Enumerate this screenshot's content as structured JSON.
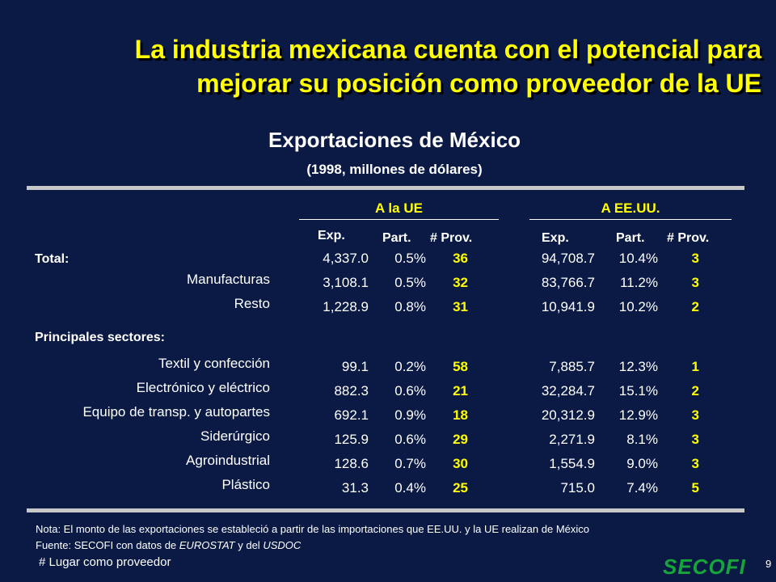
{
  "title": {
    "line1": "La industria mexicana cuenta con el potencial para",
    "line2": "mejorar su posición como proveedor de la UE"
  },
  "subtitle": "Exportaciones de México",
  "subsubtitle": "(1998, millones de dólares)",
  "groups": {
    "ue": "A la UE",
    "usa": "A EE.UU."
  },
  "headers": {
    "exp": "Exp.",
    "part": "Part.",
    "prov": "# Prov."
  },
  "rows": [
    {
      "label": "Total:",
      "ue_exp": "4,337.0",
      "ue_part": "0.5%",
      "ue_prov": "36",
      "us_exp": "94,708.7",
      "us_part": "10.4%",
      "us_prov": "3"
    },
    {
      "label": "Manufacturas",
      "ue_exp": "3,108.1",
      "ue_part": "0.5%",
      "ue_prov": "32",
      "us_exp": "83,766.7",
      "us_part": "11.2%",
      "us_prov": "3"
    },
    {
      "label": "Resto",
      "ue_exp": "1,228.9",
      "ue_part": "0.8%",
      "ue_prov": "31",
      "us_exp": "10,941.9",
      "us_part": "10.2%",
      "us_prov": "2"
    },
    {
      "label": "Principales sectores:"
    },
    {
      "label": "Textil y confección",
      "ue_exp": "99.1",
      "ue_part": "0.2%",
      "ue_prov": "58",
      "us_exp": "7,885.7",
      "us_part": "12.3%",
      "us_prov": "1"
    },
    {
      "label": "Electrónico  y eléctrico",
      "ue_exp": "882.3",
      "ue_part": "0.6%",
      "ue_prov": "21",
      "us_exp": "32,284.7",
      "us_part": "15.1%",
      "us_prov": "2"
    },
    {
      "label": "Equipo de transp. y autopartes",
      "ue_exp": "692.1",
      "ue_part": "0.9%",
      "ue_prov": "18",
      "us_exp": "20,312.9",
      "us_part": "12.9%",
      "us_prov": "3"
    },
    {
      "label": "Siderúrgico",
      "ue_exp": "125.9",
      "ue_part": "0.6%",
      "ue_prov": "29",
      "us_exp": "2,271.9",
      "us_part": "8.1%",
      "us_prov": "3"
    },
    {
      "label": "Agroindustrial",
      "ue_exp": "128.6",
      "ue_part": "0.7%",
      "ue_prov": "30",
      "us_exp": "1,554.9",
      "us_part": "9.0%",
      "us_prov": "3"
    },
    {
      "label": "Plástico",
      "ue_exp": "31.3",
      "ue_part": "0.4%",
      "ue_prov": "25",
      "us_exp": "715.0",
      "us_part": "7.4%",
      "us_prov": "5"
    }
  ],
  "note": "Nota:  El monto de  las exportaciones se estableció a partir de las importaciones que EE.UU. y la UE realizan de México",
  "source": {
    "prefix": "Fuente: SECOFI con datos de ",
    "eurostat": "EUROSTAT",
    "mid": " y del ",
    "usdoc": "USDOC"
  },
  "legend": "# Lugar como proveedor",
  "logo": "SECOFI",
  "page_number": "9",
  "colors": {
    "background": "#0b1a45",
    "title": "#ffff00",
    "highlight": "#ffff00",
    "logo": "#15a53a",
    "rule": "#c8c8c8"
  }
}
